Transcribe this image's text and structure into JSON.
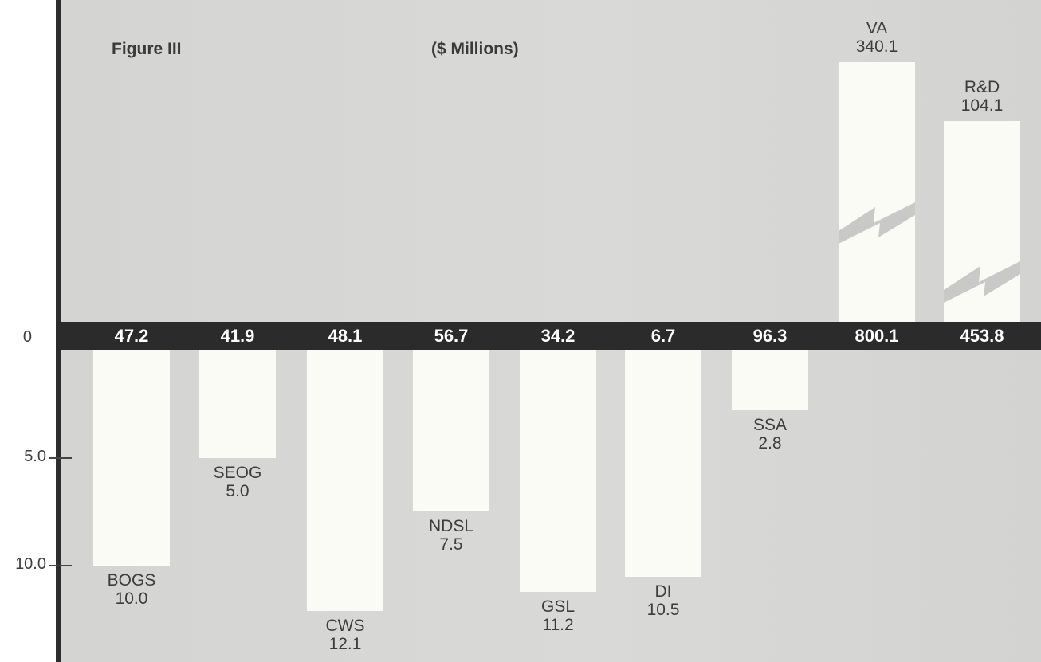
{
  "figure_label": "Figure III",
  "unit_label": "($ Millions)",
  "chart_data": {
    "type": "bar",
    "title": "",
    "unit": "($ Millions)",
    "axis": {
      "tick_labels": [
        "0",
        "5.0",
        "10.0"
      ],
      "ticks": [
        0,
        5.0,
        10.0
      ],
      "direction": "downward below the zero band"
    },
    "categories": [
      "BOGS",
      "SEOG",
      "CWS",
      "NDSL",
      "GSL",
      "DI",
      "SSA",
      "VA",
      "R&D"
    ],
    "band_values": [
      "47.2",
      "41.9",
      "48.1",
      "56.7",
      "34.2",
      "6.7",
      "96.3",
      "800.1",
      "453.8"
    ],
    "values": [
      10.0,
      5.0,
      12.1,
      7.5,
      11.2,
      10.5,
      2.8,
      340.1,
      104.1
    ],
    "value_labels": [
      "10.0",
      "5.0",
      "12.1",
      "7.5",
      "11.2",
      "10.5",
      "2.8",
      "340.1",
      "104.1"
    ],
    "broken_scale_bars": [
      "VA",
      "R&D"
    ],
    "colors": {
      "background": "#d7d7d5",
      "band": "#2b2b2b",
      "bar": "#fbfbf5",
      "text": "#3d3d3d",
      "band_text": "#ffffff"
    }
  }
}
